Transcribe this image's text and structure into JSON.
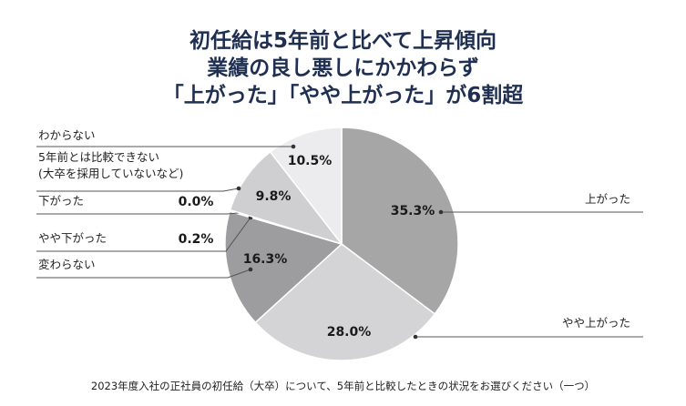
{
  "title_lines": [
    "初任給は5年前と比べて上昇傾向",
    "業績の良し悪しにかかわらず",
    "「上がった」「やや上がった」が6割超"
  ],
  "caption": "2023年度入社の正社員の初任給（大卒）について、5年前と比較したときの状況をお選びください（一つ）",
  "chart_data": {
    "type": "pie",
    "title": "",
    "start": "top, clockwise",
    "slices": [
      {
        "label": "上がった",
        "value": 35.3,
        "value_label": "35.3%",
        "color": "#a6a6a6"
      },
      {
        "label": "やや上がった",
        "value": 28.0,
        "value_label": "28.0%",
        "color": "#d4d4d6"
      },
      {
        "label": "変わらない",
        "value": 16.3,
        "value_label": "16.3%",
        "color": "#9d9d9f"
      },
      {
        "label": "やや下がった",
        "value": 0.2,
        "value_label": "0.2%",
        "color": "#c9c9c9"
      },
      {
        "label": "下がった",
        "value": 0.0,
        "value_label": "0.0%",
        "color": "#b8b8b8"
      },
      {
        "label": "5年前とは比較できない\n(大卒を採用していないなど)",
        "value": 9.8,
        "value_label": "9.8%",
        "color": "#cfcfd1"
      },
      {
        "label": "わからない",
        "value": 10.5,
        "value_label": "10.5%",
        "color": "#ececee"
      }
    ]
  }
}
